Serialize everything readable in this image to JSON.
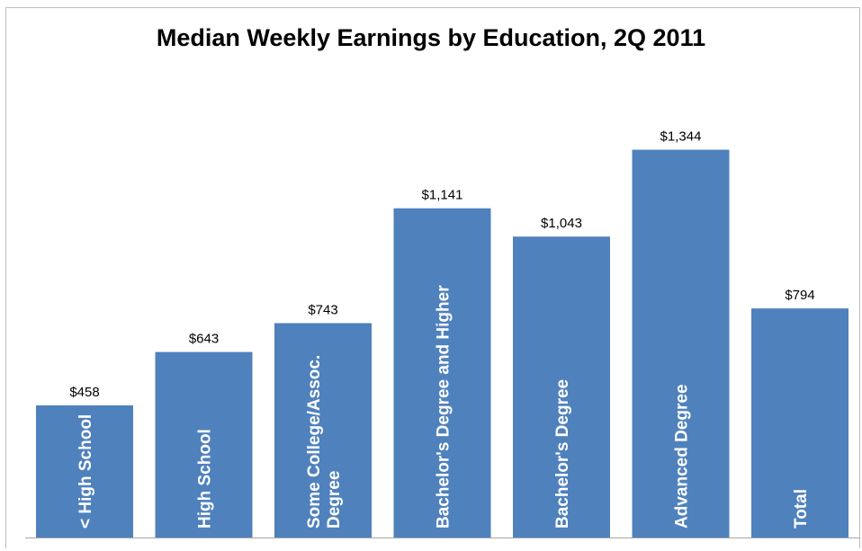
{
  "chart_data": {
    "type": "bar",
    "title": "Median Weekly Earnings by Education, 2Q 2011",
    "xlabel": "",
    "ylabel": "",
    "ylim": [
      0,
      1900
    ],
    "grid": false,
    "legend": "none",
    "bar_color": "#4f81bd",
    "categories": [
      "< High School",
      "High School",
      "Some College/Assoc.\nDegree",
      "Bachelor's Degree and Higher",
      "Bachelor's  Degree",
      "Advanced Degree",
      "Total"
    ],
    "values": [
      458,
      643,
      743,
      1141,
      1043,
      1344,
      794
    ],
    "value_labels": [
      "$458",
      "$643",
      "$743",
      "$1,141",
      "$1,043",
      "$1,344",
      "$794"
    ]
  }
}
